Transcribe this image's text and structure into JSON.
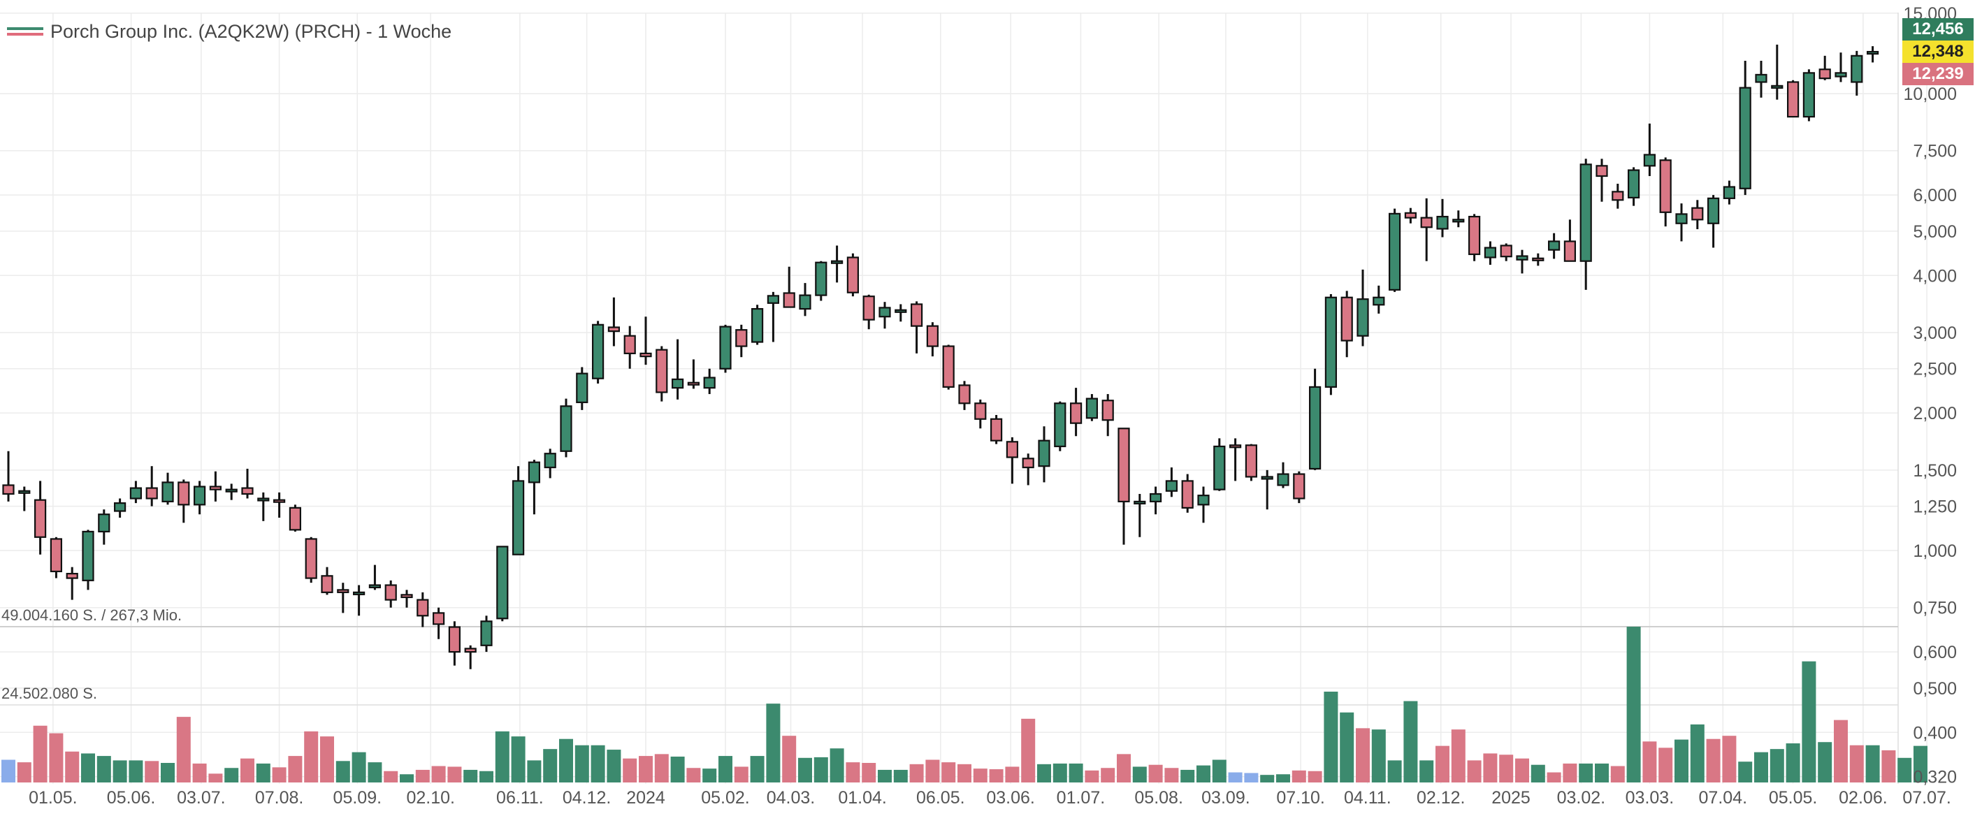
{
  "header": {
    "title": "Porch Group Inc. (A2QK2W) (PRCH) - 1 Woche"
  },
  "volume_notes": {
    "max": "49.004.160 S. / 267,3 Mio.",
    "mid": "24.502.080 S."
  },
  "price_tags": {
    "high": "12,456",
    "close": "12,348",
    "low": "12,239"
  },
  "colors": {
    "up": "#3c8a6e",
    "down": "#d97785",
    "volume_up": "#3c8a6e",
    "volume_down": "#d97785",
    "volume_neutral": "#8aacea",
    "grid": "#ececec",
    "tag_high": "#2f7d5d",
    "tag_close": "#f4e12d",
    "tag_low": "#d9727f"
  },
  "chart_data": {
    "type": "candlestick",
    "interval": "1 Woche",
    "yscale": "log",
    "ylim": [
      0.3,
      15.0
    ],
    "y_ticks": [
      "15,000",
      "10,000",
      "7,500",
      "6,000",
      "5,000",
      "4,000",
      "3,000",
      "2,500",
      "2,000",
      "1,500",
      "1,250",
      "1,000",
      "0,750",
      "0,600",
      "0,500",
      "0,400",
      "0,320"
    ],
    "y_tick_values": [
      15,
      10,
      7.5,
      6,
      5,
      4,
      3,
      2.5,
      2,
      1.5,
      1.25,
      1,
      0.75,
      0.6,
      0.5,
      0.4,
      0.32
    ],
    "x_ticks": [
      "01.05.",
      "05.06.",
      "03.07.",
      "07.08.",
      "05.09.",
      "02.10.",
      "06.11.",
      "04.12.",
      "2024",
      "05.02.",
      "04.03.",
      "01.04.",
      "06.05.",
      "03.06.",
      "01.07.",
      "05.08.",
      "03.09.",
      "07.10.",
      "04.11.",
      "02.12.",
      "2025",
      "03.02.",
      "03.03.",
      "07.04.",
      "05.05.",
      "02.06.",
      "07.07."
    ],
    "x_tick_bars": [
      2.8,
      7.7,
      12.1,
      17.0,
      21.9,
      26.5,
      32.1,
      36.3,
      40.0,
      45.0,
      49.1,
      53.6,
      58.5,
      62.9,
      67.3,
      72.2,
      76.4,
      81.1,
      85.3,
      89.9,
      94.3,
      98.7,
      103.0,
      107.6,
      112.0,
      116.4,
      120.4
    ],
    "candles": [
      {
        "o": 1.39,
        "h": 1.65,
        "l": 1.28,
        "c": 1.33
      },
      {
        "o": 1.35,
        "h": 1.38,
        "l": 1.22,
        "c": 1.35
      },
      {
        "o": 1.29,
        "h": 1.42,
        "l": 0.98,
        "c": 1.07
      },
      {
        "o": 1.06,
        "h": 1.07,
        "l": 0.87,
        "c": 0.9
      },
      {
        "o": 0.89,
        "h": 0.92,
        "l": 0.78,
        "c": 0.87
      },
      {
        "o": 0.86,
        "h": 1.11,
        "l": 0.82,
        "c": 1.1
      },
      {
        "o": 1.1,
        "h": 1.23,
        "l": 1.03,
        "c": 1.2
      },
      {
        "o": 1.22,
        "h": 1.3,
        "l": 1.18,
        "c": 1.27
      },
      {
        "o": 1.3,
        "h": 1.42,
        "l": 1.27,
        "c": 1.37
      },
      {
        "o": 1.37,
        "h": 1.53,
        "l": 1.25,
        "c": 1.3
      },
      {
        "o": 1.28,
        "h": 1.48,
        "l": 1.26,
        "c": 1.41
      },
      {
        "o": 1.41,
        "h": 1.43,
        "l": 1.15,
        "c": 1.26
      },
      {
        "o": 1.26,
        "h": 1.42,
        "l": 1.2,
        "c": 1.38
      },
      {
        "o": 1.38,
        "h": 1.49,
        "l": 1.28,
        "c": 1.36
      },
      {
        "o": 1.35,
        "h": 1.4,
        "l": 1.29,
        "c": 1.36
      },
      {
        "o": 1.37,
        "h": 1.51,
        "l": 1.3,
        "c": 1.33
      },
      {
        "o": 1.3,
        "h": 1.34,
        "l": 1.16,
        "c": 1.3
      },
      {
        "o": 1.29,
        "h": 1.34,
        "l": 1.18,
        "c": 1.28
      },
      {
        "o": 1.24,
        "h": 1.26,
        "l": 1.1,
        "c": 1.11
      },
      {
        "o": 1.06,
        "h": 1.07,
        "l": 0.85,
        "c": 0.87
      },
      {
        "o": 0.88,
        "h": 0.92,
        "l": 0.8,
        "c": 0.81
      },
      {
        "o": 0.82,
        "h": 0.85,
        "l": 0.73,
        "c": 0.81
      },
      {
        "o": 0.81,
        "h": 0.84,
        "l": 0.72,
        "c": 0.81
      },
      {
        "o": 0.83,
        "h": 0.93,
        "l": 0.82,
        "c": 0.84
      },
      {
        "o": 0.84,
        "h": 0.86,
        "l": 0.75,
        "c": 0.78
      },
      {
        "o": 0.8,
        "h": 0.82,
        "l": 0.75,
        "c": 0.79
      },
      {
        "o": 0.78,
        "h": 0.81,
        "l": 0.68,
        "c": 0.72
      },
      {
        "o": 0.73,
        "h": 0.75,
        "l": 0.64,
        "c": 0.69
      },
      {
        "o": 0.68,
        "h": 0.7,
        "l": 0.56,
        "c": 0.6
      },
      {
        "o": 0.61,
        "h": 0.62,
        "l": 0.55,
        "c": 0.6
      },
      {
        "o": 0.62,
        "h": 0.72,
        "l": 0.6,
        "c": 0.7
      },
      {
        "o": 0.71,
        "h": 1.02,
        "l": 0.7,
        "c": 1.02
      },
      {
        "o": 0.98,
        "h": 1.53,
        "l": 0.98,
        "c": 1.42
      },
      {
        "o": 1.41,
        "h": 1.58,
        "l": 1.2,
        "c": 1.56
      },
      {
        "o": 1.52,
        "h": 1.67,
        "l": 1.44,
        "c": 1.63
      },
      {
        "o": 1.65,
        "h": 2.15,
        "l": 1.6,
        "c": 2.07
      },
      {
        "o": 2.11,
        "h": 2.52,
        "l": 2.03,
        "c": 2.44
      },
      {
        "o": 2.38,
        "h": 3.18,
        "l": 2.32,
        "c": 3.12
      },
      {
        "o": 3.08,
        "h": 3.58,
        "l": 2.8,
        "c": 3.02
      },
      {
        "o": 2.95,
        "h": 3.1,
        "l": 2.5,
        "c": 2.7
      },
      {
        "o": 2.7,
        "h": 3.25,
        "l": 2.55,
        "c": 2.66
      },
      {
        "o": 2.75,
        "h": 2.8,
        "l": 2.12,
        "c": 2.22
      },
      {
        "o": 2.27,
        "h": 2.9,
        "l": 2.14,
        "c": 2.37
      },
      {
        "o": 2.33,
        "h": 2.62,
        "l": 2.26,
        "c": 2.32
      },
      {
        "o": 2.27,
        "h": 2.5,
        "l": 2.2,
        "c": 2.39
      },
      {
        "o": 2.5,
        "h": 3.12,
        "l": 2.45,
        "c": 3.09
      },
      {
        "o": 3.04,
        "h": 3.12,
        "l": 2.65,
        "c": 2.8
      },
      {
        "o": 2.86,
        "h": 3.45,
        "l": 2.82,
        "c": 3.38
      },
      {
        "o": 3.48,
        "h": 3.68,
        "l": 2.86,
        "c": 3.61
      },
      {
        "o": 3.66,
        "h": 4.18,
        "l": 3.4,
        "c": 3.41
      },
      {
        "o": 3.38,
        "h": 3.85,
        "l": 3.26,
        "c": 3.62
      },
      {
        "o": 3.62,
        "h": 4.3,
        "l": 3.52,
        "c": 4.27
      },
      {
        "o": 4.3,
        "h": 4.65,
        "l": 3.86,
        "c": 4.3
      },
      {
        "o": 4.38,
        "h": 4.47,
        "l": 3.6,
        "c": 3.67
      },
      {
        "o": 3.6,
        "h": 3.63,
        "l": 3.05,
        "c": 3.2
      },
      {
        "o": 3.25,
        "h": 3.5,
        "l": 3.06,
        "c": 3.4
      },
      {
        "o": 3.36,
        "h": 3.46,
        "l": 3.17,
        "c": 3.36
      },
      {
        "o": 3.46,
        "h": 3.51,
        "l": 2.7,
        "c": 3.1
      },
      {
        "o": 3.1,
        "h": 3.16,
        "l": 2.66,
        "c": 2.8
      },
      {
        "o": 2.8,
        "h": 2.82,
        "l": 2.25,
        "c": 2.28
      },
      {
        "o": 2.3,
        "h": 2.35,
        "l": 2.03,
        "c": 2.1
      },
      {
        "o": 2.1,
        "h": 2.14,
        "l": 1.85,
        "c": 1.94
      },
      {
        "o": 1.94,
        "h": 1.98,
        "l": 1.71,
        "c": 1.74
      },
      {
        "o": 1.73,
        "h": 1.77,
        "l": 1.4,
        "c": 1.6
      },
      {
        "o": 1.59,
        "h": 1.63,
        "l": 1.39,
        "c": 1.52
      },
      {
        "o": 1.53,
        "h": 1.87,
        "l": 1.41,
        "c": 1.74
      },
      {
        "o": 1.69,
        "h": 2.12,
        "l": 1.65,
        "c": 2.1
      },
      {
        "o": 2.1,
        "h": 2.27,
        "l": 1.78,
        "c": 1.9
      },
      {
        "o": 1.95,
        "h": 2.2,
        "l": 1.92,
        "c": 2.15
      },
      {
        "o": 2.13,
        "h": 2.2,
        "l": 1.78,
        "c": 1.93
      },
      {
        "o": 1.85,
        "h": 1.85,
        "l": 1.03,
        "c": 1.28
      },
      {
        "o": 1.28,
        "h": 1.33,
        "l": 1.07,
        "c": 1.28
      },
      {
        "o": 1.28,
        "h": 1.38,
        "l": 1.2,
        "c": 1.33
      },
      {
        "o": 1.35,
        "h": 1.52,
        "l": 1.31,
        "c": 1.42
      },
      {
        "o": 1.42,
        "h": 1.47,
        "l": 1.21,
        "c": 1.24
      },
      {
        "o": 1.26,
        "h": 1.38,
        "l": 1.15,
        "c": 1.32
      },
      {
        "o": 1.36,
        "h": 1.76,
        "l": 1.35,
        "c": 1.69
      },
      {
        "o": 1.7,
        "h": 1.76,
        "l": 1.42,
        "c": 1.69
      },
      {
        "o": 1.7,
        "h": 1.71,
        "l": 1.42,
        "c": 1.45
      },
      {
        "o": 1.45,
        "h": 1.5,
        "l": 1.23,
        "c": 1.45
      },
      {
        "o": 1.39,
        "h": 1.56,
        "l": 1.37,
        "c": 1.47
      },
      {
        "o": 1.47,
        "h": 1.49,
        "l": 1.27,
        "c": 1.3
      },
      {
        "o": 1.51,
        "h": 2.5,
        "l": 1.5,
        "c": 2.28
      },
      {
        "o": 2.28,
        "h": 3.64,
        "l": 2.19,
        "c": 3.58
      },
      {
        "o": 3.58,
        "h": 3.7,
        "l": 2.65,
        "c": 2.88
      },
      {
        "o": 2.95,
        "h": 4.12,
        "l": 2.8,
        "c": 3.55
      },
      {
        "o": 3.45,
        "h": 3.8,
        "l": 3.3,
        "c": 3.58
      },
      {
        "o": 3.72,
        "h": 5.6,
        "l": 3.68,
        "c": 5.46
      },
      {
        "o": 5.48,
        "h": 5.62,
        "l": 5.2,
        "c": 5.35
      },
      {
        "o": 5.35,
        "h": 5.9,
        "l": 4.3,
        "c": 5.1
      },
      {
        "o": 5.06,
        "h": 5.88,
        "l": 4.85,
        "c": 5.38
      },
      {
        "o": 5.3,
        "h": 5.55,
        "l": 5.1,
        "c": 5.3
      },
      {
        "o": 5.38,
        "h": 5.45,
        "l": 4.3,
        "c": 4.45
      },
      {
        "o": 4.38,
        "h": 4.75,
        "l": 4.22,
        "c": 4.6
      },
      {
        "o": 4.65,
        "h": 4.7,
        "l": 4.3,
        "c": 4.4
      },
      {
        "o": 4.33,
        "h": 4.55,
        "l": 4.04,
        "c": 4.41
      },
      {
        "o": 4.36,
        "h": 4.47,
        "l": 4.2,
        "c": 4.33
      },
      {
        "o": 4.55,
        "h": 4.95,
        "l": 4.35,
        "c": 4.75
      },
      {
        "o": 4.75,
        "h": 5.3,
        "l": 4.3,
        "c": 4.3
      },
      {
        "o": 4.3,
        "h": 7.2,
        "l": 3.72,
        "c": 7.0
      },
      {
        "o": 6.95,
        "h": 7.2,
        "l": 5.8,
        "c": 6.6
      },
      {
        "o": 6.1,
        "h": 6.35,
        "l": 5.6,
        "c": 5.85
      },
      {
        "o": 5.92,
        "h": 6.9,
        "l": 5.68,
        "c": 6.8
      },
      {
        "o": 6.95,
        "h": 8.6,
        "l": 6.6,
        "c": 7.35
      },
      {
        "o": 7.15,
        "h": 7.25,
        "l": 5.12,
        "c": 5.5
      },
      {
        "o": 5.2,
        "h": 5.75,
        "l": 4.75,
        "c": 5.45
      },
      {
        "o": 5.62,
        "h": 5.85,
        "l": 5.05,
        "c": 5.3
      },
      {
        "o": 5.2,
        "h": 6.0,
        "l": 4.6,
        "c": 5.9
      },
      {
        "o": 5.9,
        "h": 6.45,
        "l": 5.72,
        "c": 6.25
      },
      {
        "o": 6.2,
        "h": 11.8,
        "l": 6.0,
        "c": 10.3
      },
      {
        "o": 10.6,
        "h": 11.8,
        "l": 9.8,
        "c": 11.0
      },
      {
        "o": 10.3,
        "h": 12.8,
        "l": 9.7,
        "c": 10.4
      },
      {
        "o": 10.6,
        "h": 10.7,
        "l": 8.9,
        "c": 8.9
      },
      {
        "o": 8.9,
        "h": 11.3,
        "l": 8.7,
        "c": 11.1
      },
      {
        "o": 11.3,
        "h": 12.1,
        "l": 10.7,
        "c": 10.8
      },
      {
        "o": 10.9,
        "h": 12.3,
        "l": 10.6,
        "c": 11.1
      },
      {
        "o": 10.6,
        "h": 12.4,
        "l": 9.9,
        "c": 12.1
      },
      {
        "o": 12.3,
        "h": 12.7,
        "l": 11.7,
        "c": 12.35
      }
    ],
    "volume": [
      {
        "v": 3.6,
        "d": "n"
      },
      {
        "v": 3.2,
        "d": "d"
      },
      {
        "v": 9.0,
        "d": "d"
      },
      {
        "v": 7.8,
        "d": "d"
      },
      {
        "v": 4.9,
        "d": "d"
      },
      {
        "v": 4.6,
        "d": "u"
      },
      {
        "v": 4.2,
        "d": "u"
      },
      {
        "v": 3.5,
        "d": "u"
      },
      {
        "v": 3.5,
        "d": "u"
      },
      {
        "v": 3.4,
        "d": "d"
      },
      {
        "v": 3.1,
        "d": "u"
      },
      {
        "v": 10.4,
        "d": "d"
      },
      {
        "v": 3.0,
        "d": "d"
      },
      {
        "v": 1.4,
        "d": "d"
      },
      {
        "v": 2.3,
        "d": "u"
      },
      {
        "v": 3.8,
        "d": "d"
      },
      {
        "v": 3.0,
        "d": "u"
      },
      {
        "v": 2.4,
        "d": "d"
      },
      {
        "v": 4.2,
        "d": "d"
      },
      {
        "v": 8.1,
        "d": "d"
      },
      {
        "v": 7.3,
        "d": "d"
      },
      {
        "v": 3.4,
        "d": "u"
      },
      {
        "v": 4.8,
        "d": "u"
      },
      {
        "v": 3.2,
        "d": "u"
      },
      {
        "v": 1.8,
        "d": "d"
      },
      {
        "v": 1.3,
        "d": "u"
      },
      {
        "v": 2.0,
        "d": "d"
      },
      {
        "v": 2.6,
        "d": "d"
      },
      {
        "v": 2.5,
        "d": "d"
      },
      {
        "v": 2.0,
        "d": "u"
      },
      {
        "v": 1.8,
        "d": "u"
      },
      {
        "v": 8.1,
        "d": "u"
      },
      {
        "v": 7.3,
        "d": "u"
      },
      {
        "v": 3.5,
        "d": "u"
      },
      {
        "v": 5.3,
        "d": "u"
      },
      {
        "v": 6.9,
        "d": "u"
      },
      {
        "v": 5.9,
        "d": "u"
      },
      {
        "v": 5.9,
        "d": "u"
      },
      {
        "v": 5.2,
        "d": "u"
      },
      {
        "v": 3.8,
        "d": "d"
      },
      {
        "v": 4.2,
        "d": "d"
      },
      {
        "v": 4.5,
        "d": "d"
      },
      {
        "v": 4.1,
        "d": "u"
      },
      {
        "v": 2.3,
        "d": "d"
      },
      {
        "v": 2.2,
        "d": "u"
      },
      {
        "v": 4.2,
        "d": "u"
      },
      {
        "v": 2.5,
        "d": "d"
      },
      {
        "v": 4.2,
        "d": "u"
      },
      {
        "v": 12.5,
        "d": "u"
      },
      {
        "v": 7.4,
        "d": "d"
      },
      {
        "v": 3.9,
        "d": "u"
      },
      {
        "v": 4.0,
        "d": "u"
      },
      {
        "v": 5.4,
        "d": "u"
      },
      {
        "v": 3.2,
        "d": "d"
      },
      {
        "v": 3.1,
        "d": "d"
      },
      {
        "v": 2.0,
        "d": "u"
      },
      {
        "v": 2.0,
        "d": "u"
      },
      {
        "v": 2.9,
        "d": "d"
      },
      {
        "v": 3.6,
        "d": "d"
      },
      {
        "v": 3.2,
        "d": "d"
      },
      {
        "v": 2.9,
        "d": "d"
      },
      {
        "v": 2.2,
        "d": "d"
      },
      {
        "v": 2.1,
        "d": "d"
      },
      {
        "v": 2.5,
        "d": "d"
      },
      {
        "v": 10.1,
        "d": "d"
      },
      {
        "v": 2.9,
        "d": "u"
      },
      {
        "v": 3.0,
        "d": "u"
      },
      {
        "v": 3.0,
        "d": "u"
      },
      {
        "v": 1.9,
        "d": "d"
      },
      {
        "v": 2.3,
        "d": "d"
      },
      {
        "v": 4.5,
        "d": "d"
      },
      {
        "v": 2.5,
        "d": "u"
      },
      {
        "v": 2.8,
        "d": "d"
      },
      {
        "v": 2.3,
        "d": "d"
      },
      {
        "v": 2.0,
        "d": "u"
      },
      {
        "v": 2.7,
        "d": "u"
      },
      {
        "v": 3.6,
        "d": "u"
      },
      {
        "v": 1.6,
        "d": "n"
      },
      {
        "v": 1.5,
        "d": "n"
      },
      {
        "v": 1.2,
        "d": "u"
      },
      {
        "v": 1.3,
        "d": "u"
      },
      {
        "v": 1.9,
        "d": "d"
      },
      {
        "v": 1.8,
        "d": "d"
      },
      {
        "v": 14.4,
        "d": "u"
      },
      {
        "v": 11.1,
        "d": "u"
      },
      {
        "v": 8.6,
        "d": "d"
      },
      {
        "v": 8.4,
        "d": "u"
      },
      {
        "v": 3.5,
        "d": "u"
      },
      {
        "v": 12.9,
        "d": "u"
      },
      {
        "v": 3.5,
        "d": "u"
      },
      {
        "v": 5.8,
        "d": "d"
      },
      {
        "v": 8.4,
        "d": "d"
      },
      {
        "v": 3.5,
        "d": "d"
      },
      {
        "v": 4.6,
        "d": "d"
      },
      {
        "v": 4.4,
        "d": "d"
      },
      {
        "v": 3.8,
        "d": "d"
      },
      {
        "v": 2.8,
        "d": "u"
      },
      {
        "v": 1.6,
        "d": "d"
      },
      {
        "v": 3.0,
        "d": "d"
      },
      {
        "v": 3.0,
        "d": "u"
      },
      {
        "v": 3.0,
        "d": "u"
      },
      {
        "v": 2.6,
        "d": "d"
      },
      {
        "v": 24.7,
        "d": "u"
      },
      {
        "v": 6.5,
        "d": "d"
      },
      {
        "v": 5.5,
        "d": "d"
      },
      {
        "v": 6.8,
        "d": "u"
      },
      {
        "v": 9.2,
        "d": "u"
      },
      {
        "v": 6.9,
        "d": "d"
      },
      {
        "v": 7.4,
        "d": "d"
      },
      {
        "v": 3.3,
        "d": "u"
      },
      {
        "v": 4.8,
        "d": "u"
      },
      {
        "v": 5.3,
        "d": "u"
      },
      {
        "v": 6.2,
        "d": "u"
      },
      {
        "v": 19.2,
        "d": "u"
      },
      {
        "v": 6.4,
        "d": "u"
      },
      {
        "v": 9.9,
        "d": "d"
      },
      {
        "v": 5.9,
        "d": "d"
      },
      {
        "v": 5.9,
        "d": "u"
      },
      {
        "v": 5.1,
        "d": "d"
      },
      {
        "v": 3.9,
        "d": "u"
      },
      {
        "v": 5.8,
        "d": "u"
      }
    ],
    "volume_max_label": "49.004.160 S. / 267,3 Mio.",
    "volume_mid_label": "24.502.080 S.",
    "volume_ylim": [
      0,
      24.7
    ],
    "last_high": 12.456,
    "last_close": 12.348,
    "last_low": 12.239
  }
}
